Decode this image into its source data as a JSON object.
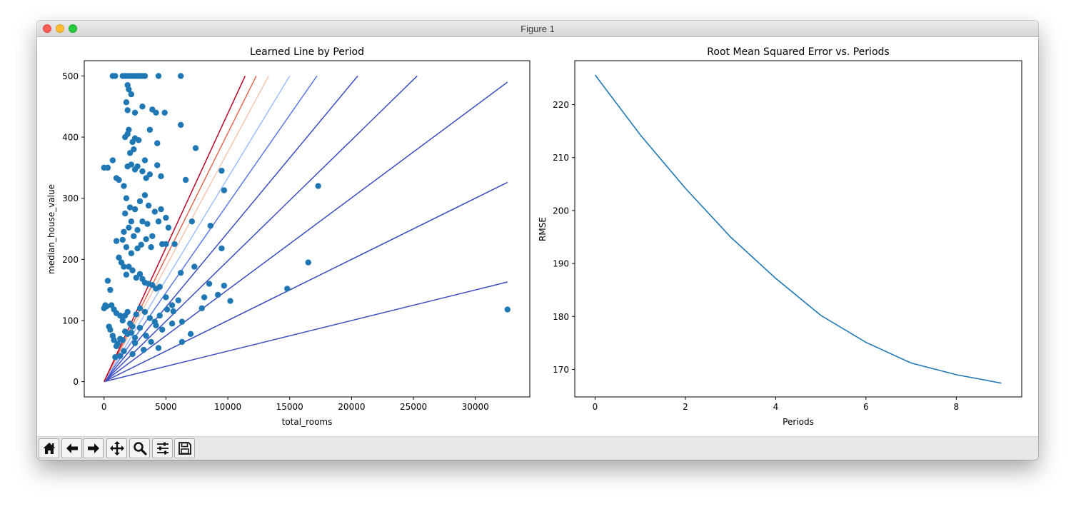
{
  "window": {
    "title": "Figure 1"
  },
  "toolbar": {
    "buttons": [
      {
        "name": "home-icon"
      },
      {
        "name": "back-arrow-icon"
      },
      {
        "name": "forward-arrow-icon"
      },
      {
        "name": "pan-icon"
      },
      {
        "name": "zoom-icon"
      },
      {
        "name": "subplots-config-icon"
      },
      {
        "name": "save-icon"
      }
    ]
  },
  "colors": {
    "scatter": "#1f77b4",
    "rmse_line": "#1f77b4"
  },
  "chart_data": [
    {
      "type": "scatter",
      "title": "Learned Line by Period",
      "xlabel": "total_rooms",
      "ylabel": "median_house_value",
      "xlim": [
        -1600,
        34400
      ],
      "ylim": [
        -25,
        525
      ],
      "xticks": [
        0,
        5000,
        10000,
        15000,
        20000,
        25000,
        30000
      ],
      "yticks": [
        0,
        100,
        200,
        300,
        400,
        500
      ],
      "xticklabels": [
        "0",
        "5000",
        "10000",
        "15000",
        "20000",
        "25000",
        "30000"
      ],
      "yticklabels": [
        "0",
        "100",
        "200",
        "300",
        "400",
        "500"
      ],
      "grid": false,
      "scatter_points": [
        [
          700,
          500
        ],
        [
          900,
          500
        ],
        [
          1500,
          500
        ],
        [
          1700,
          500
        ],
        [
          1900,
          500
        ],
        [
          2100,
          500
        ],
        [
          2300,
          500
        ],
        [
          2500,
          500
        ],
        [
          2700,
          500
        ],
        [
          2900,
          500
        ],
        [
          3100,
          500
        ],
        [
          3300,
          500
        ],
        [
          4400,
          500
        ],
        [
          6200,
          500
        ],
        [
          0,
          350
        ],
        [
          300,
          350
        ],
        [
          700,
          362
        ],
        [
          1000,
          333
        ],
        [
          1200,
          330
        ],
        [
          1600,
          320
        ],
        [
          1900,
          352
        ],
        [
          2200,
          355
        ],
        [
          2500,
          347
        ],
        [
          2700,
          352
        ],
        [
          3100,
          344
        ],
        [
          3400,
          333
        ],
        [
          3700,
          339
        ],
        [
          4300,
          354
        ],
        [
          4600,
          336
        ],
        [
          6600,
          330
        ],
        [
          9500,
          345
        ],
        [
          9700,
          313
        ],
        [
          17300,
          320
        ],
        [
          1700,
          400
        ],
        [
          1900,
          405
        ],
        [
          2000,
          412
        ],
        [
          2300,
          392
        ],
        [
          2500,
          398
        ],
        [
          2800,
          395
        ],
        [
          3700,
          412
        ],
        [
          4300,
          390
        ],
        [
          1900,
          485
        ],
        [
          2000,
          478
        ],
        [
          2200,
          470
        ],
        [
          1800,
          457
        ],
        [
          1900,
          444
        ],
        [
          2500,
          440
        ],
        [
          3100,
          450
        ],
        [
          3900,
          445
        ],
        [
          4200,
          440
        ],
        [
          4900,
          440
        ],
        [
          6200,
          420
        ],
        [
          7400,
          382
        ],
        [
          2100,
          374
        ],
        [
          2400,
          380
        ],
        [
          3300,
          362
        ],
        [
          1800,
          300
        ],
        [
          2100,
          285
        ],
        [
          1700,
          275
        ],
        [
          2200,
          262
        ],
        [
          2500,
          282
        ],
        [
          2900,
          295
        ],
        [
          3300,
          305
        ],
        [
          3600,
          288
        ],
        [
          4100,
          278
        ],
        [
          4600,
          282
        ],
        [
          5000,
          268
        ],
        [
          1600,
          245
        ],
        [
          2000,
          252
        ],
        [
          2400,
          238
        ],
        [
          2700,
          248
        ],
        [
          3100,
          262
        ],
        [
          3500,
          258
        ],
        [
          3900,
          238
        ],
        [
          4400,
          262
        ],
        [
          5200,
          252
        ],
        [
          1500,
          232
        ],
        [
          1800,
          220
        ],
        [
          2200,
          210
        ],
        [
          2700,
          218
        ],
        [
          3000,
          224
        ],
        [
          3400,
          233
        ],
        [
          3800,
          220
        ],
        [
          4700,
          225
        ],
        [
          5000,
          225
        ],
        [
          5700,
          225
        ],
        [
          7100,
          262
        ],
        [
          8600,
          255
        ],
        [
          9500,
          218
        ],
        [
          1000,
          230
        ],
        [
          1200,
          203
        ],
        [
          1400,
          195
        ],
        [
          1600,
          188
        ],
        [
          1800,
          175
        ],
        [
          2000,
          188
        ],
        [
          2300,
          182
        ],
        [
          2600,
          170
        ],
        [
          2900,
          176
        ],
        [
          3100,
          168
        ],
        [
          3300,
          162
        ],
        [
          3600,
          160
        ],
        [
          3900,
          158
        ],
        [
          4200,
          152
        ],
        [
          4500,
          155
        ],
        [
          5000,
          138
        ],
        [
          5500,
          125
        ],
        [
          6200,
          178
        ],
        [
          7300,
          188
        ],
        [
          8500,
          160
        ],
        [
          9700,
          157
        ],
        [
          14800,
          152
        ],
        [
          16500,
          195
        ],
        [
          300,
          165
        ],
        [
          500,
          150
        ],
        [
          600,
          125
        ],
        [
          800,
          118
        ],
        [
          1000,
          112
        ],
        [
          1300,
          108
        ],
        [
          1500,
          100
        ],
        [
          1700,
          108
        ],
        [
          1900,
          114
        ],
        [
          2100,
          95
        ],
        [
          2300,
          90
        ],
        [
          2600,
          110
        ],
        [
          2900,
          120
        ],
        [
          3300,
          114
        ],
        [
          3700,
          104
        ],
        [
          4100,
          98
        ],
        [
          4500,
          108
        ],
        [
          5100,
          118
        ],
        [
          5600,
          115
        ],
        [
          6000,
          133
        ],
        [
          7900,
          120
        ],
        [
          8100,
          138
        ],
        [
          9200,
          142
        ],
        [
          10200,
          132
        ],
        [
          0,
          120
        ],
        [
          100,
          125
        ],
        [
          200,
          123
        ],
        [
          400,
          90
        ],
        [
          500,
          85
        ],
        [
          700,
          75
        ],
        [
          800,
          68
        ],
        [
          1000,
          58
        ],
        [
          1100,
          62
        ],
        [
          1300,
          70
        ],
        [
          1500,
          68
        ],
        [
          1700,
          82
        ],
        [
          1900,
          78
        ],
        [
          2200,
          80
        ],
        [
          2500,
          72
        ],
        [
          2900,
          88
        ],
        [
          3400,
          75
        ],
        [
          3800,
          65
        ],
        [
          4200,
          92
        ],
        [
          4700,
          85
        ],
        [
          5500,
          95
        ],
        [
          6300,
          98
        ],
        [
          7000,
          78
        ],
        [
          6300,
          65
        ],
        [
          2500,
          63
        ],
        [
          2300,
          45
        ],
        [
          1300,
          42
        ],
        [
          900,
          40
        ],
        [
          1600,
          50
        ],
        [
          3200,
          52
        ],
        [
          4400,
          55
        ],
        [
          32600,
          118
        ]
      ],
      "line_colors": [
        "#3b4cc0",
        "#3b4cc0",
        "#3b4cc0",
        "#3b4cc0",
        "#3b4cc0",
        "#5977e3",
        "#9ebeff",
        "#f3c7b1",
        "#e26952",
        "#b40426"
      ],
      "learned_lines": [
        {
          "x": [
            0,
            32600
          ],
          "y": [
            0,
            163
          ]
        },
        {
          "x": [
            0,
            32600
          ],
          "y": [
            0,
            326
          ]
        },
        {
          "x": [
            0,
            32600
          ],
          "y": [
            0,
            490
          ]
        },
        {
          "x": [
            0,
            25300
          ],
          "y": [
            0,
            500
          ]
        },
        {
          "x": [
            0,
            20500
          ],
          "y": [
            0,
            500
          ]
        },
        {
          "x": [
            0,
            17200
          ],
          "y": [
            0,
            500
          ]
        },
        {
          "x": [
            0,
            15000
          ],
          "y": [
            0,
            500
          ]
        },
        {
          "x": [
            0,
            13300
          ],
          "y": [
            0,
            500
          ]
        },
        {
          "x": [
            0,
            12300
          ],
          "y": [
            0,
            500
          ]
        },
        {
          "x": [
            0,
            11400
          ],
          "y": [
            0,
            500
          ]
        }
      ]
    },
    {
      "type": "line",
      "title": "Root Mean Squared Error vs. Periods",
      "xlabel": "Periods",
      "ylabel": "RMSE",
      "xlim": [
        -0.45,
        9.45
      ],
      "ylim": [
        164.8,
        228.3
      ],
      "xticks": [
        0,
        2,
        4,
        6,
        8
      ],
      "yticks": [
        170,
        180,
        190,
        200,
        210,
        220
      ],
      "xticklabels": [
        "0",
        "2",
        "4",
        "6",
        "8"
      ],
      "yticklabels": [
        "170",
        "180",
        "190",
        "200",
        "210",
        "220"
      ],
      "grid": false,
      "x": [
        0,
        1,
        2,
        3,
        4,
        5,
        6,
        7,
        8,
        9
      ],
      "series": [
        {
          "values": [
            225.6,
            214.3,
            204.2,
            195.0,
            187.2,
            180.2,
            175.1,
            171.2,
            169.0,
            167.4
          ]
        }
      ]
    }
  ]
}
